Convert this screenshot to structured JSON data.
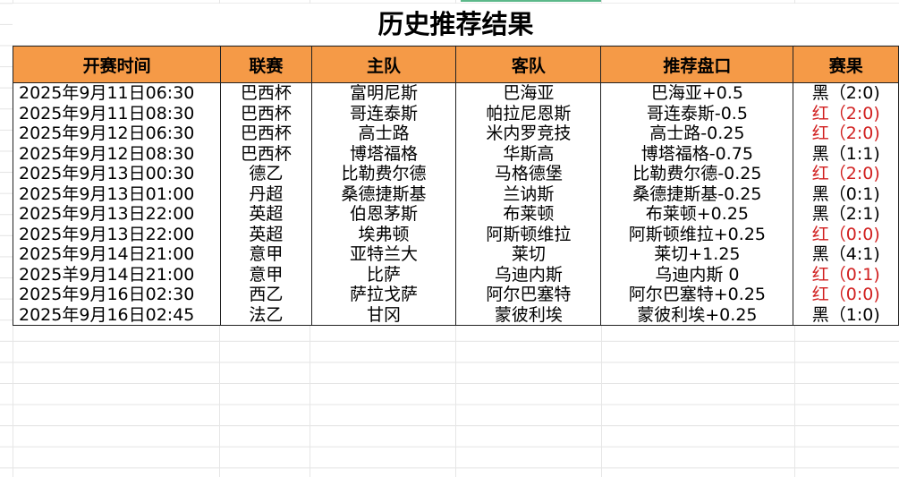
{
  "title": "历史推荐结果",
  "columns": [
    "开赛时间",
    "联赛",
    "主队",
    "客队",
    "推荐盘口",
    "赛果"
  ],
  "rows": [
    {
      "time": "2025年9月11日06:30",
      "league": "巴西杯",
      "home": "富明尼斯",
      "away": "巴海亚",
      "pick": "巴海亚+0.5",
      "result": "黑（2:0)",
      "win": false
    },
    {
      "time": "2025年9月11日08:30",
      "league": "巴西杯",
      "home": "哥连泰斯",
      "away": "帕拉尼恩斯",
      "pick": "哥连泰斯-0.5",
      "result": "红（2:0)",
      "win": true
    },
    {
      "time": "2025年9月12日06:30",
      "league": "巴西杯",
      "home": "高士路",
      "away": "米内罗竞技",
      "pick": "高士路-0.25",
      "result": "红（2:0)",
      "win": true
    },
    {
      "time": "2025年9月12日08:30",
      "league": "巴西杯",
      "home": "博塔福格",
      "away": "华斯高",
      "pick": "博塔福格-0.75",
      "result": "黑（1:1)",
      "win": false
    },
    {
      "time": "2025年9月13日00:30",
      "league": "德乙",
      "home": "比勒费尔德",
      "away": "马格德堡",
      "pick": "比勒费尔德-0.25",
      "result": "红（2:0)",
      "win": true
    },
    {
      "time": "2025年9月13日01:00",
      "league": "丹超",
      "home": "桑德捷斯基",
      "away": "兰讷斯",
      "pick": "桑德捷斯基-0.25",
      "result": "黑（0:1)",
      "win": false
    },
    {
      "time": "2025年9月13日22:00",
      "league": "英超",
      "home": "伯恩茅斯",
      "away": "布莱顿",
      "pick": "布莱顿+0.25",
      "result": "黑（2:1)",
      "win": false
    },
    {
      "time": "2025年9月13日22:00",
      "league": "英超",
      "home": "埃弗顿",
      "away": "阿斯顿维拉",
      "pick": "阿斯顿维拉+0.25",
      "result": "红（0:0)",
      "win": true
    },
    {
      "time": "2025年9月14日21:00",
      "league": "意甲",
      "home": "亚特兰大",
      "away": "莱切",
      "pick": "莱切+1.25",
      "result": "黑（4:1)",
      "win": false
    },
    {
      "time": "2025羊9月14日21:00",
      "league": "意甲",
      "home": "比萨",
      "away": "乌迪内斯",
      "pick": "乌迪内斯 0",
      "result": "红（0:1)",
      "win": true
    },
    {
      "time": "2025年9月16日02:30",
      "league": "西乙",
      "home": "萨拉戈萨",
      "away": "阿尔巴塞特",
      "pick": "阿尔巴塞特+0.25",
      "result": "红（0:0)",
      "win": true
    },
    {
      "time": "2025年9月16日02:45",
      "league": "法乙",
      "home": "甘冈",
      "away": "蒙彼利埃",
      "pick": "蒙彼利埃+0.25",
      "result": "黑（1:0)",
      "win": false
    }
  ],
  "colors": {
    "header_bg": "#f59a47",
    "win": "#d12020",
    "loss": "#000000"
  }
}
